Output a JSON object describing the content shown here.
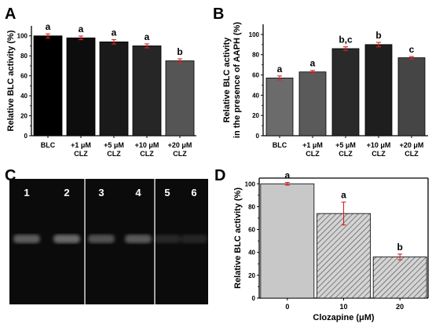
{
  "colors": {
    "error_bar": "#e02020",
    "panel_a_bars": [
      "#000000",
      "#0d0d0d",
      "#1a1a1a",
      "#262626",
      "#555555"
    ],
    "panel_b_bars": [
      "#6b6b6b",
      "#5a5a5a",
      "#2a2a2a",
      "#1e1e1e",
      "#454545"
    ],
    "panel_d_bars": [
      "#c8c8c8",
      "#a8a8a8",
      "#bcbcbc"
    ],
    "gel_background": "#0b0b0b",
    "gel_band": "#cfcfcf"
  },
  "panels": {
    "A": {
      "letter": "A"
    },
    "B": {
      "letter": "B"
    },
    "C": {
      "letter": "C"
    },
    "D": {
      "letter": "D"
    }
  },
  "gel": {
    "lanes": [
      "1",
      "2",
      "3",
      "4",
      "5",
      "6"
    ],
    "band_intensity": [
      0.42,
      0.48,
      0.36,
      0.4,
      0.14,
      0.13
    ]
  },
  "chart_data": [
    {
      "panel": "A",
      "type": "bar",
      "categories": [
        [
          "BLC"
        ],
        [
          "+1 μM",
          "CLZ"
        ],
        [
          "+5 μM",
          "CLZ"
        ],
        [
          "+10 μM",
          "CLZ"
        ],
        [
          "+20 μM",
          "CLZ"
        ]
      ],
      "values": [
        100,
        98,
        94,
        90,
        75
      ],
      "errors": [
        2.0,
        1.8,
        2.2,
        2.0,
        2.0
      ],
      "significance": [
        "a",
        "a",
        "a",
        "a",
        "b"
      ],
      "ylabel": "Relative BLC activity (%)",
      "xlabel": "",
      "ylim": [
        0,
        110
      ],
      "yticks": [
        0,
        20,
        40,
        60,
        80,
        100
      ],
      "grid": false
    },
    {
      "panel": "B",
      "type": "bar",
      "categories": [
        [
          "BLC"
        ],
        [
          "+1 μM",
          "CLZ"
        ],
        [
          "+5 μM",
          "CLZ"
        ],
        [
          "+10 μM",
          "CLZ"
        ],
        [
          "+20 μM",
          "CLZ"
        ]
      ],
      "values": [
        57,
        63,
        86,
        90,
        77
      ],
      "errors": [
        2.0,
        1.5,
        1.8,
        2.2,
        1.2
      ],
      "significance": [
        "a",
        "a",
        "b,c",
        "b",
        "c"
      ],
      "ylabel": [
        "Relative BLC activity",
        "in the presence of AAPH (%)"
      ],
      "xlabel": "",
      "ylim": [
        0,
        110
      ],
      "yticks": [
        0,
        20,
        40,
        60,
        80,
        100
      ],
      "grid": false
    },
    {
      "panel": "D",
      "type": "bar",
      "categories": [
        "0",
        "10",
        "20"
      ],
      "values": [
        100,
        74,
        36
      ],
      "errors": [
        1.2,
        10.0,
        2.5
      ],
      "significance": [
        "a",
        "a",
        "b"
      ],
      "ylabel": "Relative BLC activity (%)",
      "xlabel": "Clozapine (μM)",
      "ylim": [
        0,
        105
      ],
      "yticks": [
        0,
        20,
        40,
        60,
        80,
        100
      ],
      "hatched": [
        false,
        true,
        true
      ],
      "grid": false
    }
  ]
}
